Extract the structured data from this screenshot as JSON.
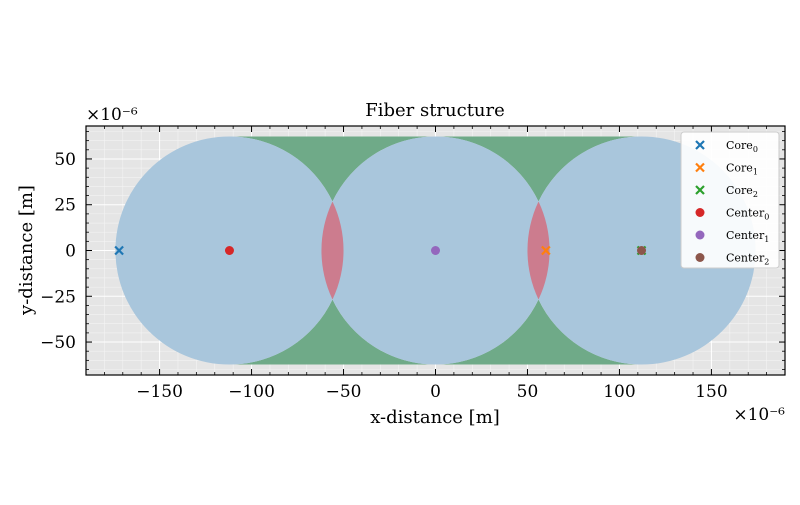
{
  "chart_data": {
    "type": "scatter",
    "title": "Fiber structure",
    "xlabel": "x-distance [m]",
    "ylabel": "y-distance [m]",
    "x_multiplier": "×10⁻⁶",
    "y_multiplier": "×10⁻⁶",
    "xlim": [
      -190,
      190
    ],
    "ylim": [
      -68,
      68
    ],
    "x_ticks": [
      -150,
      -100,
      -50,
      0,
      50,
      100,
      150
    ],
    "y_ticks": [
      -50,
      -25,
      0,
      25,
      50
    ],
    "x_tick_labels": [
      "−150",
      "−100",
      "−50",
      "0",
      "50",
      "100",
      "150"
    ],
    "y_tick_labels": [
      "−50",
      "−25",
      "0",
      "25",
      "50"
    ],
    "grid": true,
    "legend_position": "top-right",
    "background": "#e5e5e5",
    "fibers": [
      {
        "cx": -112,
        "cy": 0,
        "r": 62
      },
      {
        "cx": 0,
        "cy": 0,
        "r": 62
      },
      {
        "cx": 112,
        "cy": 0,
        "r": 62
      }
    ],
    "fill_colors": {
      "fiber": "#a9c6dc",
      "overlap": "#cc7c8e",
      "cladding_gap": "#6faa88"
    },
    "series": [
      {
        "name": "Core",
        "sub": "0",
        "marker": "x",
        "color": "#1f77b4",
        "points": [
          [
            -172,
            0
          ]
        ]
      },
      {
        "name": "Core",
        "sub": "1",
        "marker": "x",
        "color": "#ff7f0e",
        "points": [
          [
            60,
            0
          ]
        ]
      },
      {
        "name": "Core",
        "sub": "2",
        "marker": "x",
        "color": "#2ca02c",
        "points": [
          [
            112,
            0
          ]
        ]
      },
      {
        "name": "Center",
        "sub": "0",
        "marker": "o",
        "color": "#d62728",
        "points": [
          [
            -112,
            0
          ]
        ]
      },
      {
        "name": "Center",
        "sub": "1",
        "marker": "o",
        "color": "#9467bd",
        "points": [
          [
            0,
            0
          ]
        ]
      },
      {
        "name": "Center",
        "sub": "2",
        "marker": "o",
        "color": "#8c564b",
        "points": [
          [
            112,
            0
          ]
        ]
      }
    ]
  }
}
